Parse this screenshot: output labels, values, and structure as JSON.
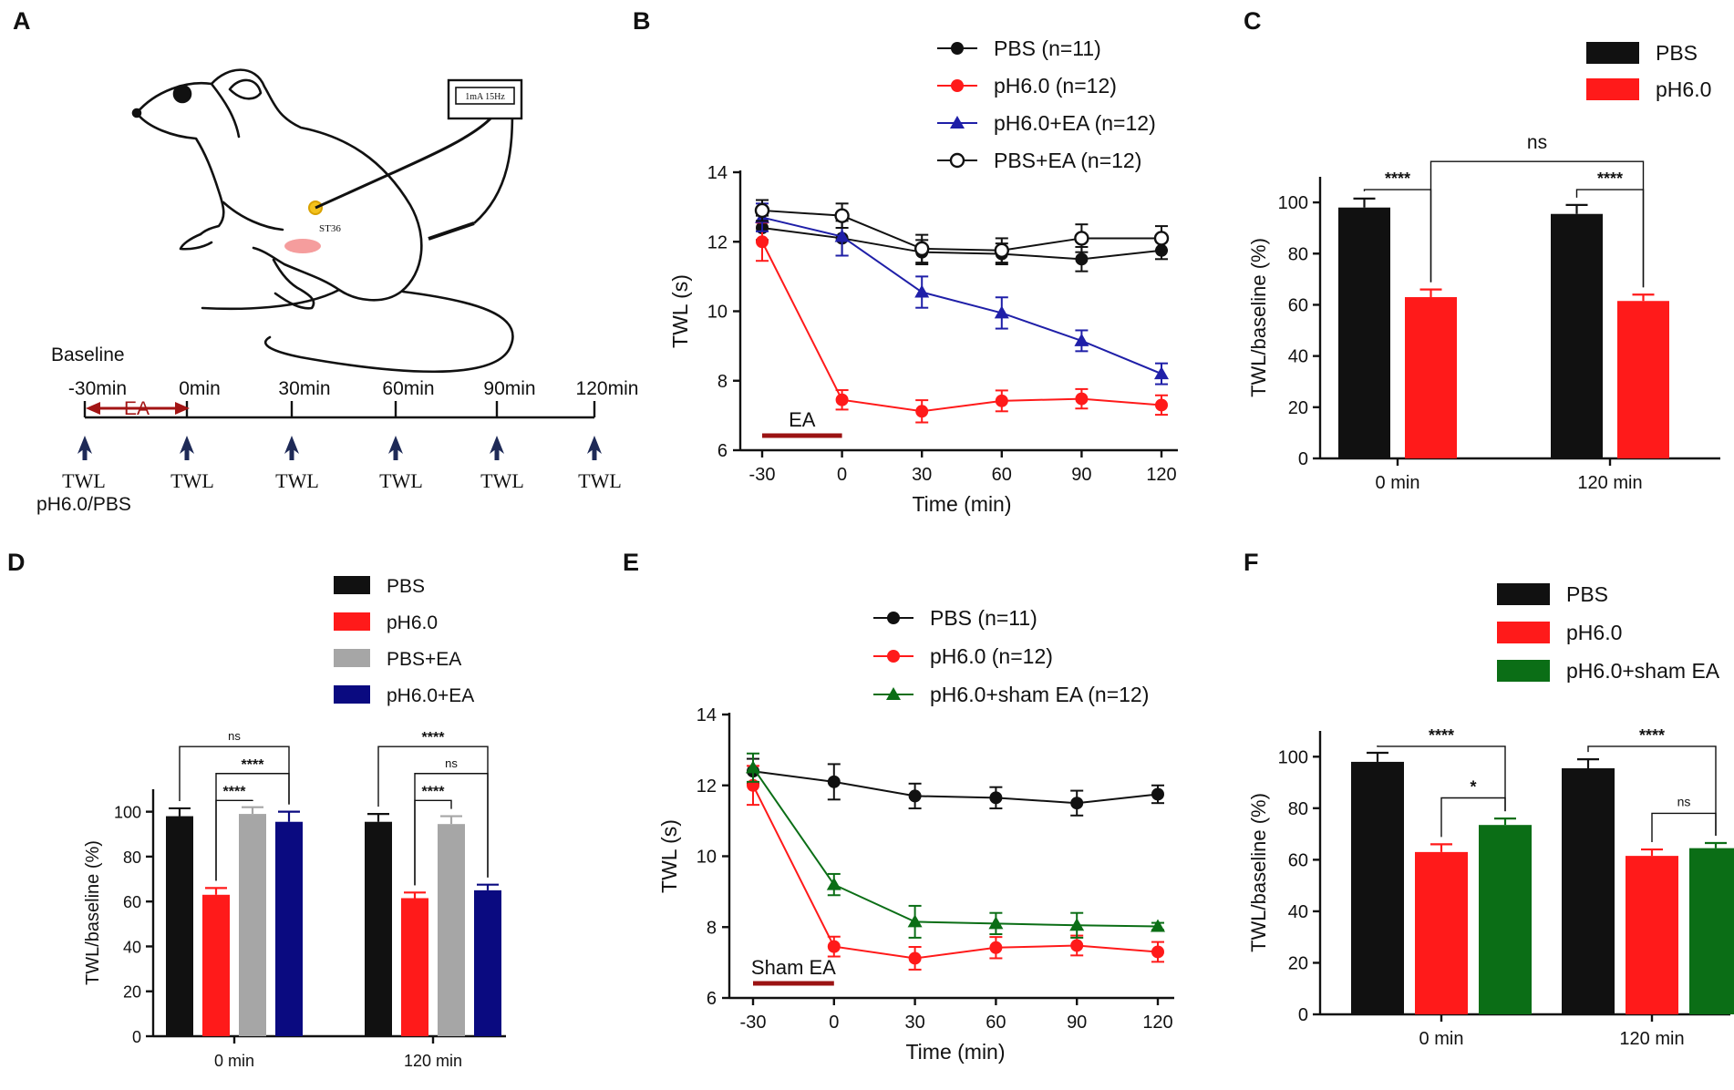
{
  "panels": {
    "A": {
      "label": "A",
      "device_text": "1mA 15Hz",
      "acupoint": "ST36",
      "baseline_label": "Baseline",
      "ea_label": "EA",
      "timepoints": [
        "-30min",
        "0min",
        "30min",
        "60min",
        "90min",
        "120min"
      ],
      "measure_labels": [
        "TWL",
        "TWL",
        "TWL",
        "TWL",
        "TWL",
        "TWL"
      ],
      "injection_label": "pH6.0/PBS"
    },
    "B": {
      "label": "B"
    },
    "C": {
      "label": "C"
    },
    "D": {
      "label": "D"
    },
    "E": {
      "label": "E"
    },
    "F": {
      "label": "F"
    }
  },
  "colors": {
    "black": "#111111",
    "red": "#ff1a1a",
    "blue": "#1f1fa8",
    "gray": "#a6a6a6",
    "navy": "#0a0a80",
    "green": "#0b6e16",
    "darkred": "#9b1313"
  },
  "chart_data": [
    {
      "id": "B",
      "type": "line",
      "xlabel": "Time (min)",
      "ylabel": "TWL (s)",
      "x": [
        -30,
        0,
        30,
        60,
        90,
        120
      ],
      "xticks": [
        "-30",
        "0",
        "30",
        "60",
        "90",
        "120"
      ],
      "ylim": [
        6,
        14
      ],
      "yticks": [
        "6",
        "8",
        "10",
        "12",
        "14"
      ],
      "bar_label": "EA",
      "bar_range": [
        -30,
        0
      ],
      "series": [
        {
          "name": "PBS (n=11)",
          "color": "#111111",
          "marker": "circle",
          "values": [
            12.4,
            12.1,
            11.7,
            11.65,
            11.5,
            11.75
          ],
          "errors": [
            0.35,
            0.5,
            0.35,
            0.3,
            0.35,
            0.25
          ]
        },
        {
          "name": "pH6.0 (n=12)",
          "color": "#ff1a1a",
          "marker": "circle",
          "values": [
            12.0,
            7.45,
            7.12,
            7.42,
            7.48,
            7.3
          ],
          "errors": [
            0.55,
            0.28,
            0.32,
            0.3,
            0.28,
            0.28
          ]
        },
        {
          "name": "pH6.0+EA (n=12)",
          "color": "#1f1fa8",
          "marker": "triangle",
          "values": [
            12.7,
            12.15,
            10.55,
            9.95,
            9.15,
            8.2
          ],
          "errors": [
            0.4,
            0.55,
            0.45,
            0.45,
            0.3,
            0.3
          ]
        },
        {
          "name": "PBS+EA (n=12)",
          "color": "#111111",
          "marker": "open-circle",
          "values": [
            12.9,
            12.75,
            11.8,
            11.75,
            12.1,
            12.1
          ],
          "errors": [
            0.3,
            0.35,
            0.4,
            0.35,
            0.4,
            0.35
          ]
        }
      ]
    },
    {
      "id": "C",
      "type": "bar",
      "ylabel": "TWL/baseline (%)",
      "categories": [
        "0 min",
        "120 min"
      ],
      "ylim": [
        0,
        110
      ],
      "yticks": [
        "0",
        "20",
        "40",
        "60",
        "80",
        "100"
      ],
      "series": [
        {
          "name": "PBS",
          "color": "#111111",
          "values": [
            98,
            95.5
          ],
          "errors": [
            3.5,
            3.5
          ]
        },
        {
          "name": "pH6.0",
          "color": "#ff1a1a",
          "values": [
            63,
            61.5
          ],
          "errors": [
            3,
            2.5
          ]
        }
      ],
      "annotations": [
        {
          "label": "****",
          "from": [
            0,
            0
          ],
          "to": [
            0,
            1
          ],
          "level": 105
        },
        {
          "label": "****",
          "from": [
            1,
            0
          ],
          "to": [
            1,
            1
          ],
          "level": 105
        },
        {
          "label": "ns",
          "from": [
            0,
            1
          ],
          "to": [
            1,
            1
          ],
          "level": 116
        }
      ]
    },
    {
      "id": "D",
      "type": "bar",
      "ylabel": "TWL/baseline (%)",
      "categories": [
        "0 min",
        "120 min"
      ],
      "ylim": [
        0,
        110
      ],
      "yticks": [
        "0",
        "20",
        "40",
        "60",
        "80",
        "100"
      ],
      "series": [
        {
          "name": "PBS",
          "color": "#111111",
          "values": [
            98,
            95.5
          ],
          "errors": [
            3.5,
            3.5
          ]
        },
        {
          "name": "pH6.0",
          "color": "#ff1a1a",
          "values": [
            63,
            61.5
          ],
          "errors": [
            3,
            2.5
          ]
        },
        {
          "name": "PBS+EA",
          "color": "#a6a6a6",
          "values": [
            99,
            94.5
          ],
          "errors": [
            3,
            3.5
          ]
        },
        {
          "name": "pH6.0+EA",
          "color": "#0a0a80",
          "values": [
            95.5,
            65
          ],
          "errors": [
            4.5,
            2.5
          ]
        }
      ],
      "annotations": [
        {
          "label": "****",
          "from": [
            0,
            1
          ],
          "to": [
            0,
            2
          ],
          "level": 105
        },
        {
          "label": "****",
          "from": [
            0,
            1
          ],
          "to": [
            0,
            3
          ],
          "level": 117
        },
        {
          "label": "ns",
          "from": [
            0,
            0
          ],
          "to": [
            0,
            3
          ],
          "level": 129
        },
        {
          "label": "****",
          "from": [
            1,
            1
          ],
          "to": [
            1,
            2
          ],
          "level": 105
        },
        {
          "label": "ns",
          "from": [
            1,
            1
          ],
          "to": [
            1,
            3
          ],
          "level": 117
        },
        {
          "label": "****",
          "from": [
            1,
            0
          ],
          "to": [
            1,
            3
          ],
          "level": 129
        }
      ]
    },
    {
      "id": "E",
      "type": "line",
      "xlabel": "Time (min)",
      "ylabel": "TWL (s)",
      "x": [
        -30,
        0,
        30,
        60,
        90,
        120
      ],
      "xticks": [
        "-30",
        "0",
        "30",
        "60",
        "90",
        "120"
      ],
      "ylim": [
        6,
        14
      ],
      "yticks": [
        "6",
        "8",
        "10",
        "12",
        "14"
      ],
      "bar_label": "Sham EA",
      "bar_range": [
        -30,
        0
      ],
      "series": [
        {
          "name": "PBS (n=11)",
          "color": "#111111",
          "marker": "circle",
          "values": [
            12.4,
            12.1,
            11.7,
            11.65,
            11.5,
            11.75
          ],
          "errors": [
            0.35,
            0.5,
            0.35,
            0.3,
            0.35,
            0.25
          ]
        },
        {
          "name": "pH6.0 (n=12)",
          "color": "#ff1a1a",
          "marker": "circle",
          "values": [
            12.0,
            7.45,
            7.12,
            7.42,
            7.48,
            7.3
          ],
          "errors": [
            0.55,
            0.28,
            0.32,
            0.3,
            0.28,
            0.28
          ]
        },
        {
          "name": "pH6.0+sham EA (n=12)",
          "color": "#0b6e16",
          "marker": "triangle",
          "values": [
            12.5,
            9.2,
            8.15,
            8.1,
            8.05,
            8.02
          ],
          "errors": [
            0.4,
            0.3,
            0.45,
            0.3,
            0.35,
            0.1
          ]
        }
      ]
    },
    {
      "id": "F",
      "type": "bar",
      "ylabel": "TWL/baseline (%)",
      "categories": [
        "0 min",
        "120 min"
      ],
      "ylim": [
        0,
        110
      ],
      "yticks": [
        "0",
        "20",
        "40",
        "60",
        "80",
        "100"
      ],
      "series": [
        {
          "name": "PBS",
          "color": "#111111",
          "values": [
            98,
            95.5
          ],
          "errors": [
            3.5,
            3.5
          ]
        },
        {
          "name": "pH6.0",
          "color": "#ff1a1a",
          "values": [
            63,
            61.5
          ],
          "errors": [
            3,
            2.5
          ]
        },
        {
          "name": "pH6.0+sham EA",
          "color": "#0b6e16",
          "values": [
            73.5,
            64.5
          ],
          "errors": [
            2.5,
            2
          ]
        }
      ],
      "annotations": [
        {
          "label": "*",
          "from": [
            0,
            1
          ],
          "to": [
            0,
            2
          ],
          "level": 84
        },
        {
          "label": "****",
          "from": [
            0,
            0
          ],
          "to": [
            0,
            2
          ],
          "level": 104
        },
        {
          "label": "ns",
          "from": [
            1,
            1
          ],
          "to": [
            1,
            2
          ],
          "level": 78
        },
        {
          "label": "****",
          "from": [
            1,
            0
          ],
          "to": [
            1,
            2
          ],
          "level": 104
        }
      ]
    }
  ]
}
